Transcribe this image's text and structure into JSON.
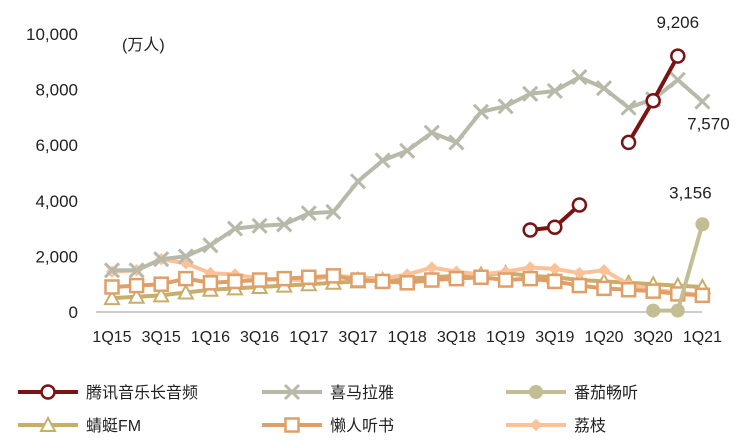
{
  "chart_data": {
    "type": "line",
    "unit_label": "(万人)",
    "y_ticks": [
      "10,000",
      "8,000",
      "6,000",
      "4,000",
      "2,000",
      "0"
    ],
    "ylim": [
      0,
      10000
    ],
    "x_tick_labels": [
      "1Q15",
      "3Q15",
      "1Q16",
      "3Q16",
      "1Q17",
      "3Q17",
      "1Q18",
      "3Q18",
      "1Q19",
      "3Q19",
      "1Q20",
      "3Q20",
      "1Q21"
    ],
    "x": [
      "1Q15",
      "2Q15",
      "3Q15",
      "4Q15",
      "1Q16",
      "2Q16",
      "3Q16",
      "4Q16",
      "1Q17",
      "2Q17",
      "3Q17",
      "4Q17",
      "1Q18",
      "2Q18",
      "3Q18",
      "4Q18",
      "1Q19",
      "2Q19",
      "3Q19",
      "4Q19",
      "1Q20",
      "2Q20",
      "3Q20",
      "4Q20",
      "1Q21"
    ],
    "series": [
      {
        "name": "腾讯音乐长音频",
        "color": "#7a1414",
        "marker": "circle",
        "values": [
          null,
          null,
          null,
          null,
          null,
          null,
          null,
          null,
          null,
          null,
          null,
          null,
          null,
          null,
          null,
          null,
          null,
          2950,
          3050,
          3850,
          null,
          6100,
          7600,
          9206,
          null
        ]
      },
      {
        "name": "喜马拉雅",
        "color": "#b9b9aa",
        "marker": "cross",
        "values": [
          1500,
          1500,
          1900,
          2000,
          2400,
          3000,
          3100,
          3150,
          3550,
          3600,
          4700,
          5450,
          5800,
          6450,
          6100,
          7200,
          7400,
          7850,
          7950,
          8450,
          8050,
          7350,
          7650,
          8350,
          7570
        ]
      },
      {
        "name": "番茄畅听",
        "color": "#c3bd94",
        "marker": "dot",
        "values": [
          null,
          null,
          null,
          null,
          null,
          null,
          null,
          null,
          null,
          null,
          null,
          null,
          null,
          null,
          null,
          null,
          null,
          null,
          null,
          null,
          null,
          null,
          50,
          50,
          3156
        ]
      },
      {
        "name": "蜻蜓FM",
        "color": "#c8ae6a",
        "marker": "triangle",
        "values": [
          500,
          550,
          600,
          700,
          800,
          850,
          900,
          950,
          1000,
          1050,
          1100,
          1150,
          1200,
          1250,
          1300,
          1350,
          1400,
          1300,
          1250,
          1150,
          1100,
          1050,
          1000,
          950,
          900
        ]
      },
      {
        "name": "懒人听书",
        "color": "#e09f68",
        "marker": "square",
        "values": [
          900,
          950,
          1000,
          1200,
          1050,
          1100,
          1150,
          1200,
          1250,
          1300,
          1150,
          1100,
          1050,
          1150,
          1200,
          1250,
          1150,
          1200,
          1100,
          950,
          850,
          800,
          750,
          650,
          600
        ]
      },
      {
        "name": "荔枝",
        "color": "#fbc199",
        "marker": "diamond",
        "values": [
          1450,
          1500,
          1900,
          1750,
          1400,
          1350,
          1200,
          1150,
          1150,
          1300,
          1250,
          1200,
          1350,
          1600,
          1450,
          1350,
          1450,
          1600,
          1550,
          1400,
          1500,
          1000,
          800,
          700,
          600
        ]
      }
    ],
    "annotations": [
      {
        "text": "9,206",
        "series": 0,
        "index": 23
      },
      {
        "text": "7,570",
        "series": 1,
        "index": 24
      },
      {
        "text": "3,156",
        "series": 2,
        "index": 24
      }
    ],
    "legend_position": "bottom",
    "grid": false
  }
}
